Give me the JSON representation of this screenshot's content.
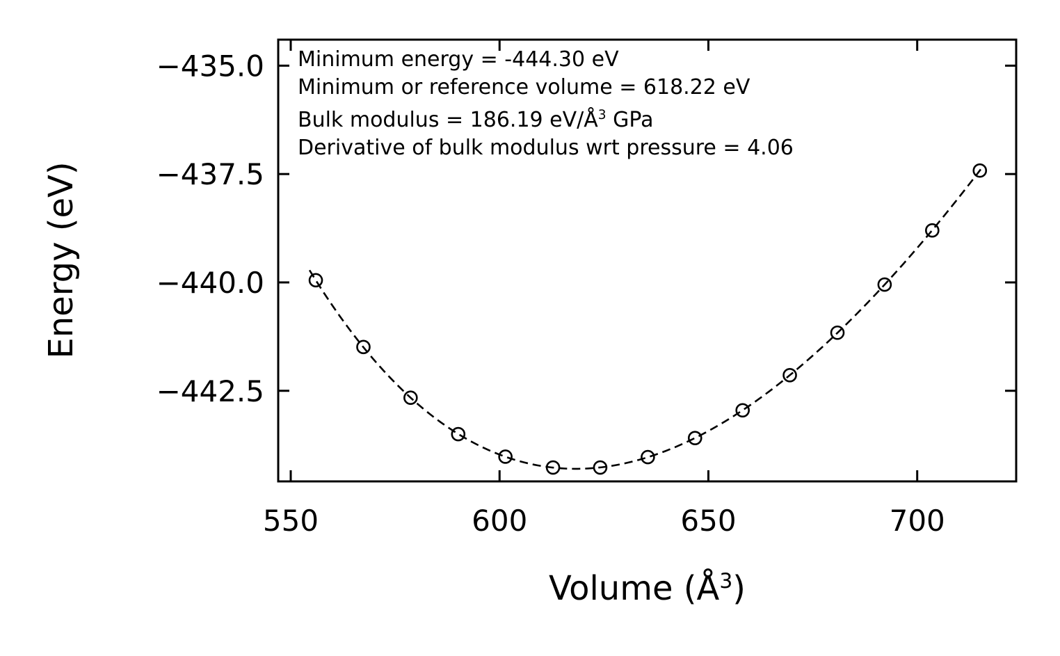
{
  "chart_data": {
    "type": "scatter",
    "title": "",
    "ylabel": "Energy (eV)",
    "xlabel_parts": {
      "pre": "Volume (Å",
      "sup": "3",
      "post": ")"
    },
    "xlim": [
      547.0,
      723.7
    ],
    "ylim": [
      -444.59,
      -434.4
    ],
    "xticks": [
      550,
      600,
      650,
      700
    ],
    "xtick_labels": [
      "550",
      "600",
      "650",
      "700"
    ],
    "yticks": [
      -435.0,
      -437.5,
      -440.0,
      -442.5
    ],
    "ytick_labels": [
      "−435.0",
      "−437.5",
      "−440.0",
      "−442.5"
    ],
    "grid": false,
    "legend": null,
    "color": "#000000",
    "background": "#ffffff",
    "annotation": {
      "line1": "Minimum energy = -444.30 eV",
      "line2": "Minimum or reference volume = 618.22 eV",
      "line3_pre": "Bulk modulus = 186.19 eV/Å",
      "line3_sup": "3",
      "line3_post": " GPa",
      "line4": "Derivative of bulk modulus wrt pressure = 4.06"
    },
    "series": [
      {
        "name": "data-points",
        "marker": "circle-open",
        "x": [
          556.0,
          567.4,
          578.7,
          590.1,
          601.4,
          612.8,
          624.1,
          635.5,
          646.8,
          658.2,
          669.5,
          680.9,
          692.2,
          703.6,
          715.0
        ],
        "y": [
          -439.95,
          -441.49,
          -442.66,
          -443.5,
          -444.02,
          -444.27,
          -444.27,
          -444.03,
          -443.59,
          -442.95,
          -442.14,
          -441.16,
          -440.05,
          -438.8,
          -437.42
        ]
      },
      {
        "name": "birch-murnaghan-fit",
        "style": "dashed",
        "fit": {
          "min_energy_eV": -444.3,
          "min_volume": 618.22,
          "bulk_modulus_GPa": 186.19,
          "bulk_modulus_derivative": 4.06
        },
        "v_range": [
          554.5,
          715.2
        ]
      }
    ]
  }
}
